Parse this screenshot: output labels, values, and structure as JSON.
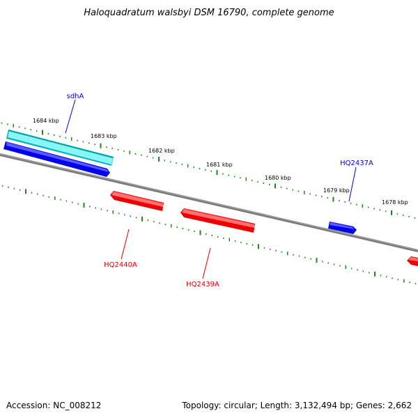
{
  "title": "Haloquadratum walsbyi DSM 16790, complete genome",
  "footer": {
    "accession": "Accession: NC_008212",
    "summary": "Topology: circular; Length: 3,132,494 bp; Genes: 2,662"
  },
  "colors": {
    "background": "#ffffff",
    "backbone": "#7a7a7a",
    "tick_marks": "#1e8a1e",
    "forward_gene": "#0000ee",
    "forward_rna": "#00e5e5",
    "reverse_gene": "#ee0000",
    "forward_label": "#0000cc",
    "reverse_label": "#dd0000"
  },
  "scale_labels": [
    "1684 kbp",
    "1683 kbp",
    "1682 kbp",
    "1681 kbp",
    "1680 kbp",
    "1679 kbp",
    "1678 kbp"
  ],
  "gene_labels": {
    "sdhA": "sdhA",
    "HQ2437A": "HQ2437A",
    "HQ2440A": "HQ2440A",
    "HQ2439A": "HQ2439A"
  }
}
